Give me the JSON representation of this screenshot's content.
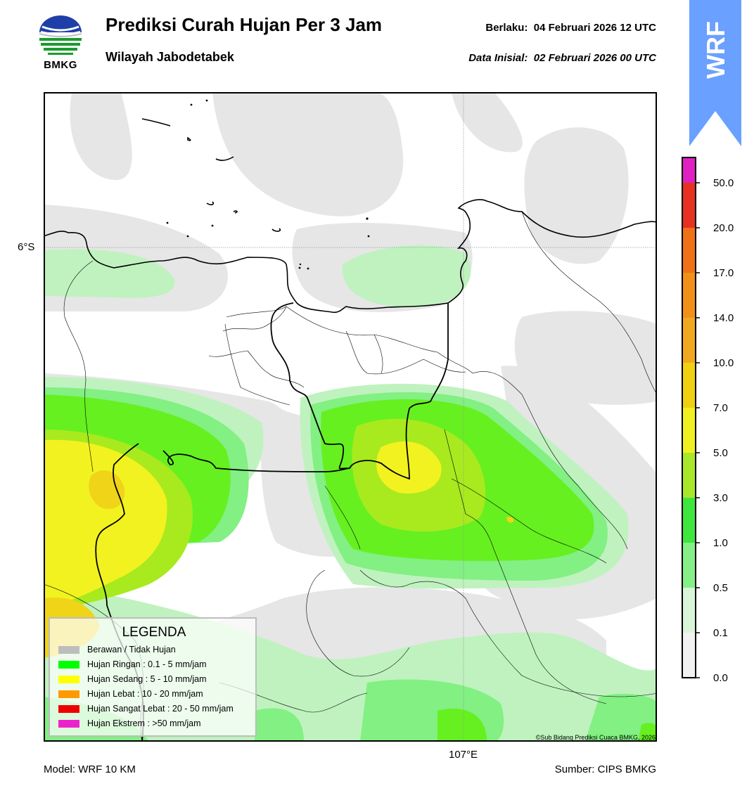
{
  "header": {
    "title": "Prediksi Curah Hujan Per 3 Jam",
    "subtitle": "Wilayah Jabodetabek",
    "valid_label": "Berlaku:",
    "valid_value": "04 Februari 2026 12 UTC",
    "init_label": "Data Inisial:",
    "init_value": "02 Februari 2026 00 UTC",
    "logo_text": "BMKG",
    "badge_text": "WRF"
  },
  "map": {
    "lat_label": "6°S",
    "lon_label": "107°E",
    "copyright": "©Sub Bidang Prediksi Cuaca BMKG, 2026"
  },
  "footer": {
    "model": "Model: WRF 10 KM",
    "source": "Sumber: CIPS BMKG"
  },
  "legend": {
    "title": "LEGENDA",
    "items": [
      {
        "label": "Berawan / Tidak Hujan",
        "color": "#bdbdbd"
      },
      {
        "label": "Hujan Ringan : 0.1 - 5 mm/jam",
        "color": "#00ff00"
      },
      {
        "label": "Hujan Sedang : 5 - 10 mm/jam",
        "color": "#ffff00"
      },
      {
        "label": "Hujan Lebat : 10 - 20 mm/jam",
        "color": "#ff9900"
      },
      {
        "label": "Hujan Sangat Lebat : 20 - 50 mm/jam",
        "color": "#ee0000"
      },
      {
        "label": "Hujan Ekstrem : >50 mm/jam",
        "color": "#ee22cc"
      }
    ]
  },
  "colorbar": {
    "ticks": [
      "0.0",
      "0.1",
      "0.5",
      "1.0",
      "3.0",
      "5.0",
      "7.0",
      "10.0",
      "14.0",
      "17.0",
      "20.0",
      "50.0"
    ],
    "colors": [
      "#f2f2f2",
      "#d9f5d9",
      "#86f086",
      "#3ee63e",
      "#a8e82a",
      "#f0f020",
      "#f0d010",
      "#f0a820",
      "#f09018",
      "#f07018",
      "#e83020",
      "#e020c0"
    ]
  },
  "map_colors": {
    "cloud": "#e6e6e6",
    "rain_01": "#bff2bf",
    "rain_05": "#82f082",
    "rain_10": "#66f020",
    "rain_30": "#a8ea1e",
    "rain_50": "#f2f220",
    "rain_70": "#f0d418"
  }
}
